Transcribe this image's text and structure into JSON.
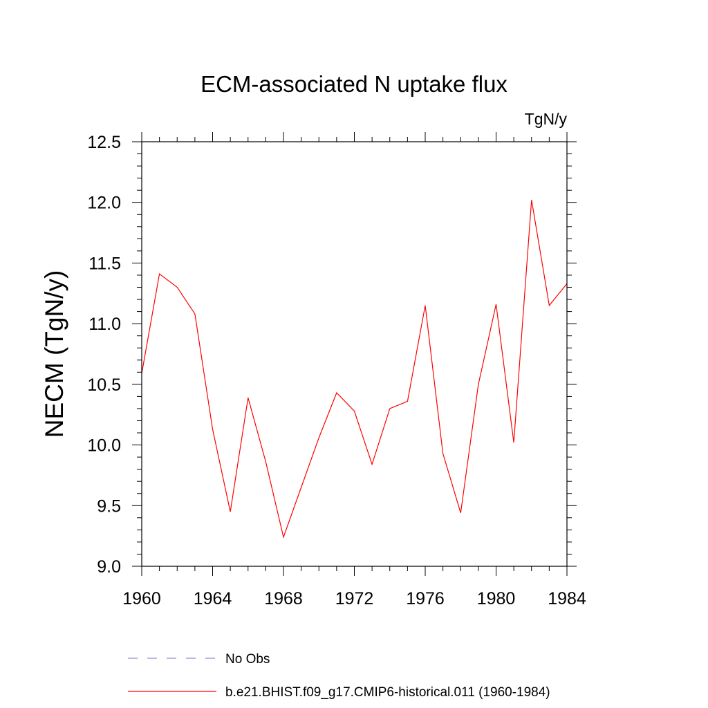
{
  "chart_data": {
    "type": "line",
    "title": "ECM-associated N uptake flux",
    "units": "TgN/y",
    "ylabel": "NECM  (TgN/y)",
    "xlabel": "",
    "xlim": [
      1960,
      1984
    ],
    "ylim": [
      9.0,
      12.5
    ],
    "xticks": [
      1960,
      1964,
      1968,
      1972,
      1976,
      1980,
      1984
    ],
    "yticks": [
      "9.0",
      "9.5",
      "10.0",
      "10.5",
      "11.0",
      "11.5",
      "12.0",
      "12.5"
    ],
    "grid": false,
    "legend_position": "bottom",
    "series": [
      {
        "name": "No Obs",
        "color": "#8f8fd0",
        "dash": "dashed",
        "x": [],
        "y": []
      },
      {
        "name": "b.e21.BHIST.f09_g17.CMIP6-historical.011 (1960-1984)",
        "color": "#ff0000",
        "dash": "solid",
        "x": [
          1960,
          1961,
          1962,
          1963,
          1964,
          1965,
          1966,
          1967,
          1968,
          1969,
          1970,
          1971,
          1972,
          1973,
          1974,
          1975,
          1976,
          1977,
          1978,
          1979,
          1980,
          1981,
          1982,
          1983,
          1984
        ],
        "y": [
          10.59,
          11.41,
          11.3,
          11.08,
          10.13,
          9.45,
          10.39,
          9.86,
          9.24,
          9.65,
          10.06,
          10.43,
          10.28,
          9.84,
          10.3,
          10.36,
          11.15,
          9.93,
          9.44,
          10.5,
          11.16,
          10.02,
          12.02,
          11.15,
          11.33
        ]
      }
    ]
  }
}
